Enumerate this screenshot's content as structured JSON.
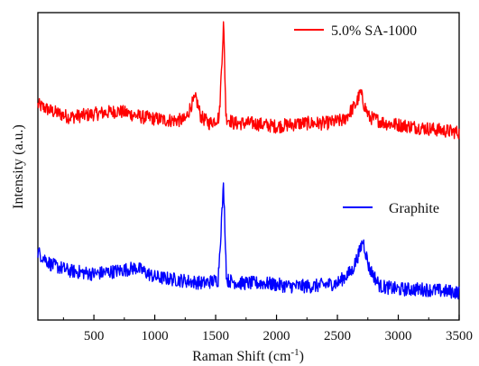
{
  "chart_data": {
    "type": "line",
    "xlabel": "Raman Shift (cm",
    "xlabel_sup": "-1",
    "xlabel_tail": ")",
    "ylabel": "Intensity (a.u.)",
    "xlim": [
      40,
      3500
    ],
    "ylim": [
      0,
      1
    ],
    "x_ticks": [
      500,
      1000,
      1500,
      2000,
      2500,
      3000,
      3500
    ],
    "x_tick_labels": [
      "500",
      "1000",
      "1500",
      "2000",
      "2500",
      "3000",
      "3500"
    ],
    "y_ticks_shown": false,
    "grid": false,
    "legend_placement": "inline near each curve (upper-right)",
    "series": [
      {
        "name": "5.0% SA-1000",
        "color": "#ff0000",
        "x": [
          40,
          150,
          300,
          500,
          700,
          900,
          1100,
          1250,
          1300,
          1340,
          1380,
          1450,
          1530,
          1565,
          1585,
          1650,
          1800,
          2000,
          2200,
          2400,
          2550,
          2650,
          2690,
          2720,
          2760,
          2900,
          3100,
          3300,
          3500
        ],
        "values": [
          0.7,
          0.68,
          0.66,
          0.67,
          0.68,
          0.66,
          0.65,
          0.65,
          0.7,
          0.72,
          0.66,
          0.64,
          0.66,
          0.97,
          0.66,
          0.64,
          0.64,
          0.63,
          0.64,
          0.64,
          0.65,
          0.7,
          0.74,
          0.7,
          0.66,
          0.64,
          0.63,
          0.62,
          0.61
        ]
      },
      {
        "name": "Graphite",
        "color": "#0000ff",
        "x": [
          40,
          150,
          300,
          500,
          700,
          850,
          1000,
          1200,
          1400,
          1520,
          1565,
          1590,
          1700,
          1900,
          2100,
          2300,
          2500,
          2620,
          2680,
          2710,
          2760,
          2850,
          3000,
          3200,
          3500
        ],
        "values": [
          0.22,
          0.18,
          0.16,
          0.15,
          0.16,
          0.17,
          0.14,
          0.13,
          0.12,
          0.13,
          0.44,
          0.13,
          0.12,
          0.12,
          0.11,
          0.11,
          0.12,
          0.16,
          0.22,
          0.26,
          0.17,
          0.11,
          0.1,
          0.1,
          0.09
        ]
      }
    ]
  }
}
